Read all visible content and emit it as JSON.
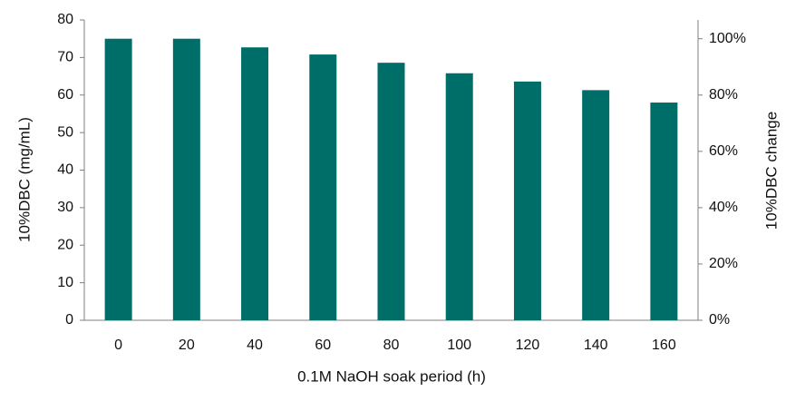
{
  "chart_data": {
    "type": "bar",
    "categories": [
      "0",
      "20",
      "40",
      "60",
      "80",
      "100",
      "120",
      "140",
      "160"
    ],
    "values": [
      75,
      75,
      72.7,
      70.8,
      68.6,
      65.8,
      63.6,
      61.3,
      58
    ],
    "xlabel": "0.1M NaOH soak period (h)",
    "ylabel": "10%DBC (mg/mL)",
    "y2label": "10%DBC change",
    "ylim": [
      0,
      80
    ],
    "y2lim": [
      0,
      1.0667
    ],
    "yticks": [
      "0",
      "10",
      "20",
      "30",
      "40",
      "50",
      "60",
      "70",
      "80"
    ],
    "y2ticks": [
      "0%",
      "20%",
      "40%",
      "60%",
      "80%",
      "100%"
    ],
    "grid": false,
    "legend": "none",
    "colors": {
      "bar": "#006e68",
      "axis": "#7f7f7f"
    }
  }
}
